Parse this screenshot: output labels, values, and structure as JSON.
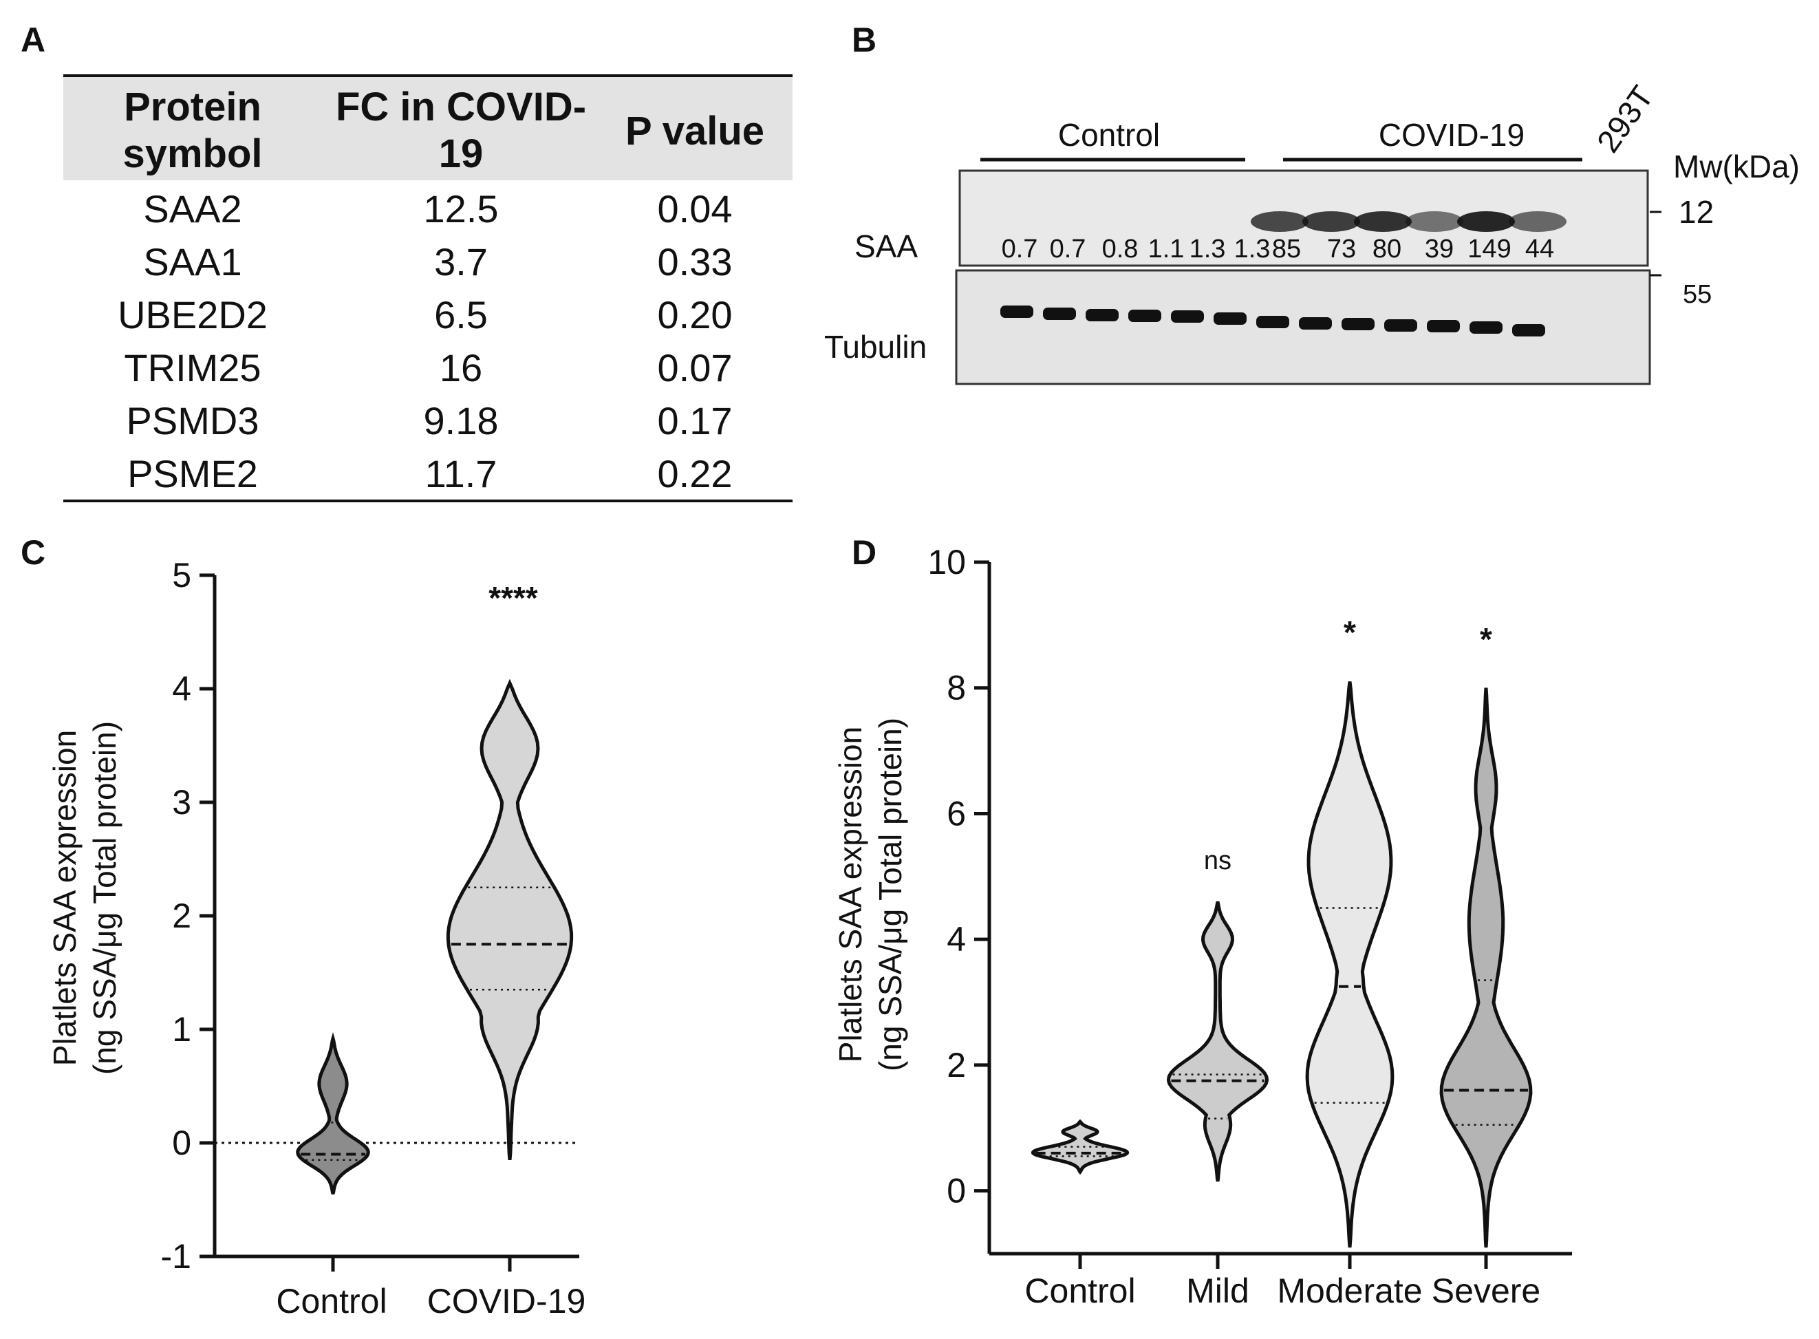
{
  "panels": {
    "A": "A",
    "B": "B",
    "C": "C",
    "D": "D"
  },
  "table": {
    "headers": [
      [
        "Protein",
        "symbol"
      ],
      [
        "FC in COVID-",
        "19"
      ],
      [
        "P value"
      ]
    ],
    "rows": [
      [
        "SAA2",
        "12.5",
        "0.04"
      ],
      [
        "SAA1",
        "3.7",
        "0.33"
      ],
      [
        "UBE2D2",
        "6.5",
        "0.20"
      ],
      [
        "TRIM25",
        "16",
        "0.07"
      ],
      [
        "PSMD3",
        "9.18",
        "0.17"
      ],
      [
        "PSME2",
        "11.7",
        "0.22"
      ]
    ]
  },
  "western_blot": {
    "group_labels": [
      "Control",
      "COVID-19",
      "293T"
    ],
    "mw_header": "Mw(kDa)",
    "mw_markers": [
      "12",
      "55"
    ],
    "row_labels": [
      "SAA",
      "Tubulin"
    ],
    "saa_values": [
      "0.7",
      "0.7",
      "0.8",
      "1.1",
      "1.3",
      "1.3",
      "85",
      "73",
      "80",
      "39",
      "149",
      "44"
    ],
    "lanes": 13,
    "band_colors": {
      "band": "#111111",
      "membrane": "#e4e4e4"
    }
  },
  "chart_data": [
    {
      "type": "violin",
      "panel": "C",
      "categories": [
        "Control",
        "COVID-19"
      ],
      "ylabel": [
        "Platlets SAA expression",
        "(ng SSA/μg Total protein)"
      ],
      "ylim": [
        -1,
        5
      ],
      "yticks": [
        "-1",
        "0",
        "1",
        "2",
        "3",
        "4",
        "5"
      ],
      "reference_line": 0,
      "significance": [
        "",
        "****"
      ],
      "series": [
        {
          "name": "Control",
          "min": -0.45,
          "max": 0.92,
          "median": -0.1,
          "q1": -0.15,
          "q3": 0.18,
          "fill": "#8c8c8c"
        },
        {
          "name": "COVID-19",
          "min": -0.15,
          "max": 4.05,
          "median": 1.75,
          "q1": 1.35,
          "q3": 2.25,
          "fill": "#d6d6d6"
        }
      ]
    },
    {
      "type": "violin",
      "panel": "D",
      "categories": [
        "Control",
        "Mild",
        "Moderate",
        "Severe"
      ],
      "ylabel": [
        "Platlets SAA expression",
        "(ng SSA/μg Total protein)"
      ],
      "ylim": [
        -1,
        10
      ],
      "yticks": [
        "0",
        "2",
        "4",
        "6",
        "8",
        "10"
      ],
      "significance": [
        "",
        "ns",
        "*",
        "*"
      ],
      "series": [
        {
          "name": "Control",
          "min": 0.3,
          "max": 1.1,
          "median": 0.6,
          "q1": 0.55,
          "q3": 0.7,
          "fill": "#d0d0d0"
        },
        {
          "name": "Mild",
          "min": 0.15,
          "max": 4.6,
          "median": 1.75,
          "q1": 1.15,
          "q3": 1.85,
          "fill": "#cccccc"
        },
        {
          "name": "Moderate",
          "min": -0.9,
          "max": 8.1,
          "median": 3.25,
          "q1": 1.4,
          "q3": 4.5,
          "fill": "#e8e8e8"
        },
        {
          "name": "Severe",
          "min": -0.9,
          "max": 8.0,
          "median": 1.6,
          "q1": 1.05,
          "q3": 3.35,
          "fill": "#b4b4b4"
        }
      ]
    }
  ]
}
